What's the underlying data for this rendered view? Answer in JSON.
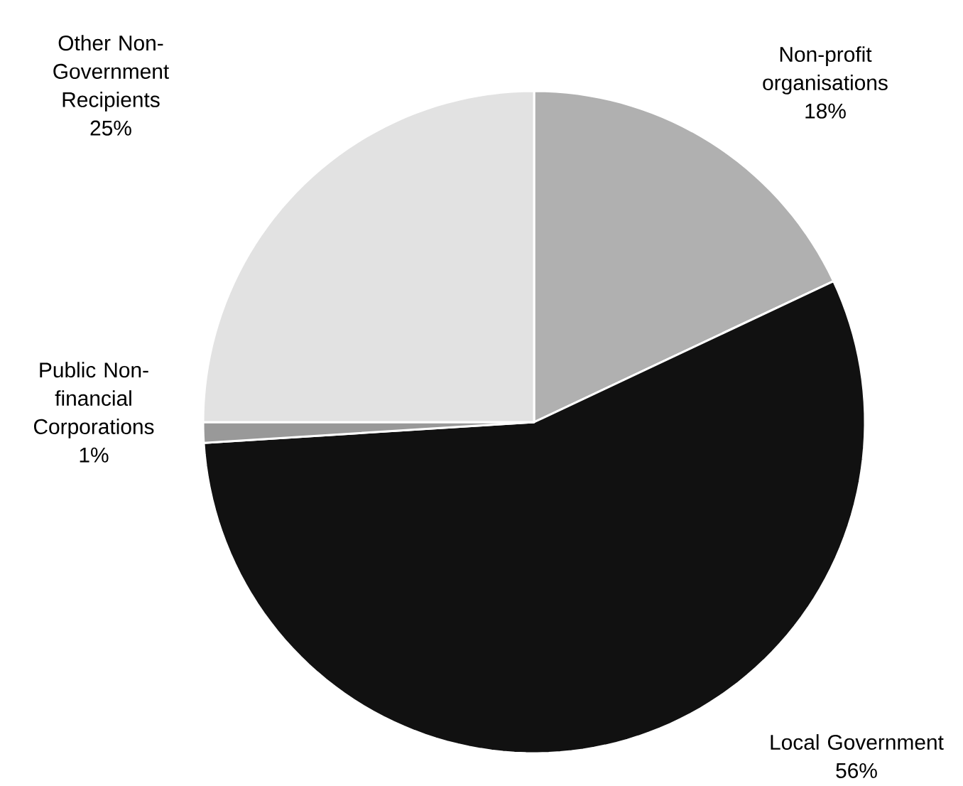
{
  "chart_data": {
    "type": "pie",
    "categories": [
      "Non-profit organisations",
      "Local Government",
      "Public Non-financial Corporations",
      "Other Non-Government Recipients"
    ],
    "values": [
      18,
      56,
      1,
      25
    ],
    "value_labels": [
      "18%",
      "56%",
      "1%",
      "25%"
    ],
    "colors": [
      "#b0b0b0",
      "#111111",
      "#999999",
      "#e2e2e2"
    ]
  }
}
